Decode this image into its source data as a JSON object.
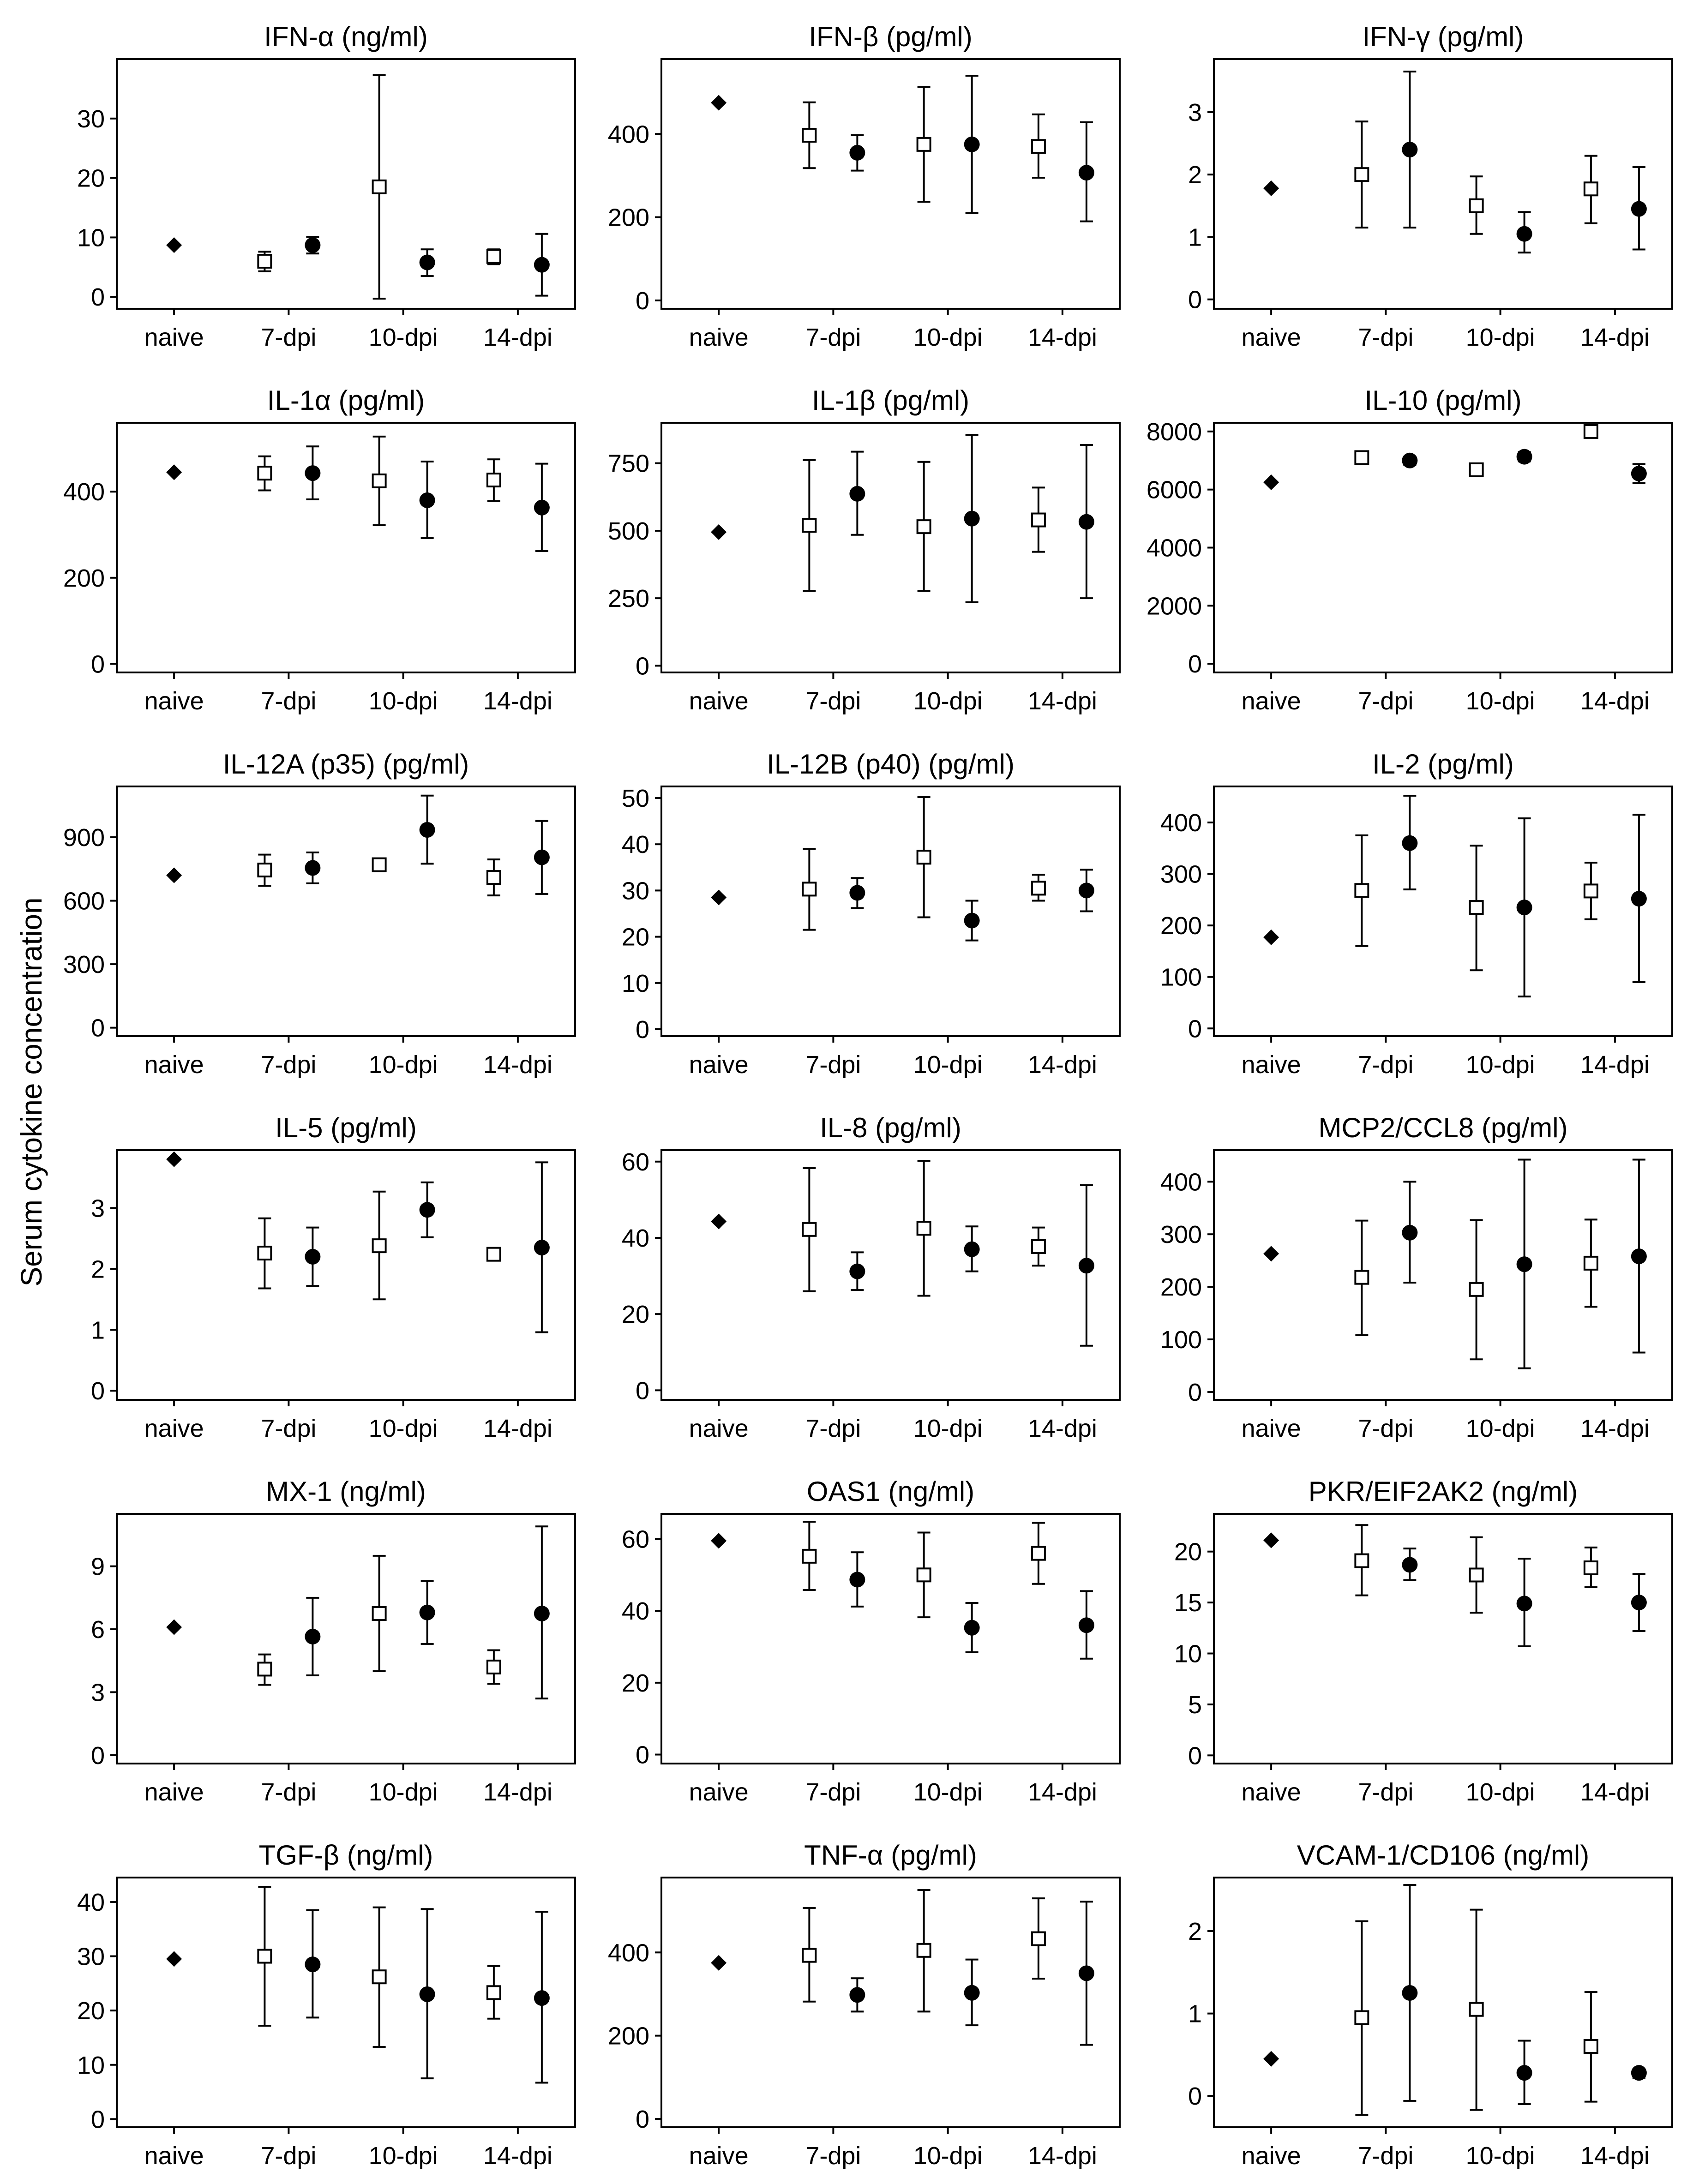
{
  "y_axis_title": "Serum cytokine concentration",
  "chart_data": [
    {
      "type": "scatter",
      "title": "IFN-α (ng/ml)",
      "categories": [
        "naive",
        "7-dpi",
        "10-dpi",
        "14-dpi"
      ],
      "ylim": [
        -2,
        40
      ],
      "yticks": [
        0,
        10,
        20,
        30
      ],
      "naive": 8.7,
      "open": [
        {
          "x": "7-dpi",
          "y": 6.0,
          "lo": 4.3,
          "hi": 7.6
        },
        {
          "x": "10-dpi",
          "y": 18.5,
          "lo": -0.3,
          "hi": 37.3
        },
        {
          "x": "14-dpi",
          "y": 6.8,
          "lo": 5.5,
          "hi": 8.0
        }
      ],
      "filled": [
        {
          "x": "7-dpi",
          "y": 8.7,
          "lo": 7.3,
          "hi": 10.1
        },
        {
          "x": "10-dpi",
          "y": 5.8,
          "lo": 3.5,
          "hi": 8.0
        },
        {
          "x": "14-dpi",
          "y": 5.4,
          "lo": 0.2,
          "hi": 10.6
        }
      ]
    },
    {
      "type": "scatter",
      "title": "IFN-β (pg/ml)",
      "categories": [
        "naive",
        "7-dpi",
        "10-dpi",
        "14-dpi"
      ],
      "ylim": [
        -20,
        580
      ],
      "yticks": [
        0,
        200,
        400
      ],
      "naive": 475,
      "open": [
        {
          "x": "7-dpi",
          "y": 397,
          "lo": 318,
          "hi": 476
        },
        {
          "x": "10-dpi",
          "y": 375,
          "lo": 237,
          "hi": 513
        },
        {
          "x": "14-dpi",
          "y": 370,
          "lo": 295,
          "hi": 447
        }
      ],
      "filled": [
        {
          "x": "7-dpi",
          "y": 355,
          "lo": 312,
          "hi": 397
        },
        {
          "x": "10-dpi",
          "y": 375,
          "lo": 210,
          "hi": 540
        },
        {
          "x": "14-dpi",
          "y": 307,
          "lo": 190,
          "hi": 428
        }
      ]
    },
    {
      "type": "scatter",
      "title": "IFN-γ (pg/ml)",
      "categories": [
        "naive",
        "7-dpi",
        "10-dpi",
        "14-dpi"
      ],
      "ylim": [
        -0.15,
        3.85
      ],
      "yticks": [
        0,
        1,
        2,
        3
      ],
      "naive": 1.78,
      "open": [
        {
          "x": "7-dpi",
          "y": 2.0,
          "lo": 1.15,
          "hi": 2.85
        },
        {
          "x": "10-dpi",
          "y": 1.5,
          "lo": 1.05,
          "hi": 1.97
        },
        {
          "x": "14-dpi",
          "y": 1.77,
          "lo": 1.22,
          "hi": 2.3
        }
      ],
      "filled": [
        {
          "x": "7-dpi",
          "y": 2.4,
          "lo": 1.15,
          "hi": 3.65
        },
        {
          "x": "10-dpi",
          "y": 1.05,
          "lo": 0.75,
          "hi": 1.4
        },
        {
          "x": "14-dpi",
          "y": 1.45,
          "lo": 0.8,
          "hi": 2.12
        }
      ]
    },
    {
      "type": "scatter",
      "title": "IL-1α (pg/ml)",
      "categories": [
        "naive",
        "7-dpi",
        "10-dpi",
        "14-dpi"
      ],
      "ylim": [
        -20,
        560
      ],
      "yticks": [
        0,
        200,
        400
      ],
      "naive": 445,
      "open": [
        {
          "x": "7-dpi",
          "y": 443,
          "lo": 403,
          "hi": 482
        },
        {
          "x": "10-dpi",
          "y": 425,
          "lo": 322,
          "hi": 528
        },
        {
          "x": "14-dpi",
          "y": 427,
          "lo": 378,
          "hi": 475
        }
      ],
      "filled": [
        {
          "x": "7-dpi",
          "y": 443,
          "lo": 382,
          "hi": 505
        },
        {
          "x": "10-dpi",
          "y": 380,
          "lo": 292,
          "hi": 470
        },
        {
          "x": "14-dpi",
          "y": 363,
          "lo": 262,
          "hi": 465
        }
      ]
    },
    {
      "type": "scatter",
      "title": "IL-1β (pg/ml)",
      "categories": [
        "naive",
        "7-dpi",
        "10-dpi",
        "14-dpi"
      ],
      "ylim": [
        -25,
        900
      ],
      "yticks": [
        0,
        250,
        500,
        750
      ],
      "naive": 495,
      "open": [
        {
          "x": "7-dpi",
          "y": 520,
          "lo": 277,
          "hi": 762
        },
        {
          "x": "10-dpi",
          "y": 515,
          "lo": 277,
          "hi": 755
        },
        {
          "x": "14-dpi",
          "y": 540,
          "lo": 422,
          "hi": 660
        }
      ],
      "filled": [
        {
          "x": "7-dpi",
          "y": 637,
          "lo": 485,
          "hi": 793
        },
        {
          "x": "10-dpi",
          "y": 545,
          "lo": 235,
          "hi": 855
        },
        {
          "x": "14-dpi",
          "y": 533,
          "lo": 250,
          "hi": 818
        }
      ]
    },
    {
      "type": "scatter",
      "title": "IL-10 (pg/ml)",
      "categories": [
        "naive",
        "7-dpi",
        "10-dpi",
        "14-dpi"
      ],
      "ylim": [
        -300,
        8300
      ],
      "yticks": [
        0,
        2000,
        4000,
        6000,
        8000
      ],
      "naive": 6250,
      "open": [
        {
          "x": "7-dpi",
          "y": 7100,
          "lo": 6950,
          "hi": 7250
        },
        {
          "x": "10-dpi",
          "y": 6680,
          "lo": 6500,
          "hi": 6850
        },
        {
          "x": "14-dpi",
          "y": 8000,
          "lo": 7900,
          "hi": 8100
        }
      ],
      "filled": [
        {
          "x": "7-dpi",
          "y": 7000,
          "lo": 6850,
          "hi": 7130
        },
        {
          "x": "10-dpi",
          "y": 7130,
          "lo": 6970,
          "hi": 7290
        },
        {
          "x": "14-dpi",
          "y": 6550,
          "lo": 6220,
          "hi": 6880
        }
      ]
    },
    {
      "type": "scatter",
      "title": "IL-12A (p35) (pg/ml)",
      "categories": [
        "naive",
        "7-dpi",
        "10-dpi",
        "14-dpi"
      ],
      "ylim": [
        -40,
        1140
      ],
      "yticks": [
        0,
        300,
        600,
        900
      ],
      "naive": 720,
      "open": [
        {
          "x": "7-dpi",
          "y": 745,
          "lo": 670,
          "hi": 818
        },
        {
          "x": "10-dpi",
          "y": 770,
          "lo": 748,
          "hi": 792
        },
        {
          "x": "14-dpi",
          "y": 710,
          "lo": 625,
          "hi": 795
        }
      ],
      "filled": [
        {
          "x": "7-dpi",
          "y": 755,
          "lo": 682,
          "hi": 828
        },
        {
          "x": "10-dpi",
          "y": 935,
          "lo": 775,
          "hi": 1097
        },
        {
          "x": "14-dpi",
          "y": 805,
          "lo": 632,
          "hi": 977
        }
      ]
    },
    {
      "type": "scatter",
      "title": "IL-12B (p40) (pg/ml)",
      "categories": [
        "naive",
        "7-dpi",
        "10-dpi",
        "14-dpi"
      ],
      "ylim": [
        -1.5,
        52.5
      ],
      "yticks": [
        0,
        10,
        20,
        30,
        40,
        50
      ],
      "naive": 28.5,
      "open": [
        {
          "x": "7-dpi",
          "y": 30.3,
          "lo": 21.5,
          "hi": 39.0
        },
        {
          "x": "10-dpi",
          "y": 37.2,
          "lo": 24.2,
          "hi": 50.2
        },
        {
          "x": "14-dpi",
          "y": 30.5,
          "lo": 27.8,
          "hi": 33.4
        }
      ],
      "filled": [
        {
          "x": "7-dpi",
          "y": 29.5,
          "lo": 26.2,
          "hi": 32.7
        },
        {
          "x": "10-dpi",
          "y": 23.5,
          "lo": 19.2,
          "hi": 27.8
        },
        {
          "x": "14-dpi",
          "y": 30.0,
          "lo": 25.5,
          "hi": 34.5
        }
      ]
    },
    {
      "type": "scatter",
      "title": "IL-2 (pg/ml)",
      "categories": [
        "naive",
        "7-dpi",
        "10-dpi",
        "14-dpi"
      ],
      "ylim": [
        -15,
        470
      ],
      "yticks": [
        0,
        100,
        200,
        300,
        400
      ],
      "naive": 177,
      "open": [
        {
          "x": "7-dpi",
          "y": 268,
          "lo": 160,
          "hi": 375
        },
        {
          "x": "10-dpi",
          "y": 235,
          "lo": 113,
          "hi": 355
        },
        {
          "x": "14-dpi",
          "y": 267,
          "lo": 212,
          "hi": 322
        }
      ],
      "filled": [
        {
          "x": "7-dpi",
          "y": 360,
          "lo": 270,
          "hi": 452
        },
        {
          "x": "10-dpi",
          "y": 235,
          "lo": 62,
          "hi": 408
        },
        {
          "x": "14-dpi",
          "y": 252,
          "lo": 90,
          "hi": 415
        }
      ]
    },
    {
      "type": "scatter",
      "title": "IL-5 (pg/ml)",
      "categories": [
        "naive",
        "7-dpi",
        "10-dpi",
        "14-dpi"
      ],
      "ylim": [
        -0.15,
        3.95
      ],
      "yticks": [
        0,
        1,
        2,
        3
      ],
      "naive": 3.8,
      "open": [
        {
          "x": "7-dpi",
          "y": 2.26,
          "lo": 1.68,
          "hi": 2.83
        },
        {
          "x": "10-dpi",
          "y": 2.38,
          "lo": 1.5,
          "hi": 3.27
        },
        {
          "x": "14-dpi",
          "y": 2.24,
          "lo": 2.17,
          "hi": 2.31
        }
      ],
      "filled": [
        {
          "x": "7-dpi",
          "y": 2.2,
          "lo": 1.72,
          "hi": 2.68
        },
        {
          "x": "10-dpi",
          "y": 2.97,
          "lo": 2.52,
          "hi": 3.42
        },
        {
          "x": "14-dpi",
          "y": 2.35,
          "lo": 0.96,
          "hi": 3.75
        }
      ]
    },
    {
      "type": "scatter",
      "title": "IL-8 (pg/ml)",
      "categories": [
        "naive",
        "7-dpi",
        "10-dpi",
        "14-dpi"
      ],
      "ylim": [
        -2.5,
        63
      ],
      "yticks": [
        0,
        20,
        40,
        60
      ],
      "naive": 44.3,
      "open": [
        {
          "x": "7-dpi",
          "y": 42.2,
          "lo": 26.0,
          "hi": 58.3
        },
        {
          "x": "10-dpi",
          "y": 42.5,
          "lo": 24.8,
          "hi": 60.2
        },
        {
          "x": "14-dpi",
          "y": 37.7,
          "lo": 32.7,
          "hi": 42.7
        }
      ],
      "filled": [
        {
          "x": "7-dpi",
          "y": 31.2,
          "lo": 26.3,
          "hi": 36.2
        },
        {
          "x": "10-dpi",
          "y": 37.0,
          "lo": 31.2,
          "hi": 43.0
        },
        {
          "x": "14-dpi",
          "y": 32.7,
          "lo": 11.7,
          "hi": 53.8
        }
      ]
    },
    {
      "type": "scatter",
      "title": "MCP2/CCL8 (pg/ml)",
      "categories": [
        "naive",
        "7-dpi",
        "10-dpi",
        "14-dpi"
      ],
      "ylim": [
        -15,
        460
      ],
      "yticks": [
        0,
        100,
        200,
        300,
        400
      ],
      "naive": 263,
      "open": [
        {
          "x": "7-dpi",
          "y": 218,
          "lo": 108,
          "hi": 326
        },
        {
          "x": "10-dpi",
          "y": 195,
          "lo": 62,
          "hi": 327
        },
        {
          "x": "14-dpi",
          "y": 245,
          "lo": 162,
          "hi": 328
        }
      ],
      "filled": [
        {
          "x": "7-dpi",
          "y": 303,
          "lo": 208,
          "hi": 400
        },
        {
          "x": "10-dpi",
          "y": 243,
          "lo": 45,
          "hi": 442
        },
        {
          "x": "14-dpi",
          "y": 258,
          "lo": 75,
          "hi": 442
        }
      ]
    },
    {
      "type": "scatter",
      "title": "MX-1 (ng/ml)",
      "categories": [
        "naive",
        "7-dpi",
        "10-dpi",
        "14-dpi"
      ],
      "ylim": [
        -0.4,
        11.5
      ],
      "yticks": [
        0,
        3,
        6,
        9
      ],
      "naive": 6.1,
      "open": [
        {
          "x": "7-dpi",
          "y": 4.1,
          "lo": 3.35,
          "hi": 4.8
        },
        {
          "x": "10-dpi",
          "y": 6.75,
          "lo": 4.0,
          "hi": 9.5
        },
        {
          "x": "14-dpi",
          "y": 4.2,
          "lo": 3.4,
          "hi": 5.0
        }
      ],
      "filled": [
        {
          "x": "7-dpi",
          "y": 5.65,
          "lo": 3.8,
          "hi": 7.5
        },
        {
          "x": "10-dpi",
          "y": 6.8,
          "lo": 5.3,
          "hi": 8.3
        },
        {
          "x": "14-dpi",
          "y": 6.75,
          "lo": 2.7,
          "hi": 10.9
        }
      ]
    },
    {
      "type": "scatter",
      "title": "OAS1 (ng/ml)",
      "categories": [
        "naive",
        "7-dpi",
        "10-dpi",
        "14-dpi"
      ],
      "ylim": [
        -2.5,
        67
      ],
      "yticks": [
        0,
        20,
        40,
        60
      ],
      "naive": 59.5,
      "open": [
        {
          "x": "7-dpi",
          "y": 55.2,
          "lo": 45.8,
          "hi": 64.8
        },
        {
          "x": "10-dpi",
          "y": 50.0,
          "lo": 38.2,
          "hi": 61.8
        },
        {
          "x": "14-dpi",
          "y": 56.0,
          "lo": 47.5,
          "hi": 64.5
        }
      ],
      "filled": [
        {
          "x": "7-dpi",
          "y": 48.7,
          "lo": 41.2,
          "hi": 56.3
        },
        {
          "x": "10-dpi",
          "y": 35.3,
          "lo": 28.5,
          "hi": 42.2
        },
        {
          "x": "14-dpi",
          "y": 36.0,
          "lo": 26.7,
          "hi": 45.5
        }
      ]
    },
    {
      "type": "scatter",
      "title": "PKR/EIF2AK2 (ng/ml)",
      "categories": [
        "naive",
        "7-dpi",
        "10-dpi",
        "14-dpi"
      ],
      "ylim": [
        -0.8,
        23.7
      ],
      "yticks": [
        0,
        5,
        10,
        15,
        20
      ],
      "naive": 21.1,
      "open": [
        {
          "x": "7-dpi",
          "y": 19.1,
          "lo": 15.7,
          "hi": 22.6
        },
        {
          "x": "10-dpi",
          "y": 17.7,
          "lo": 14.0,
          "hi": 21.4
        },
        {
          "x": "14-dpi",
          "y": 18.4,
          "lo": 16.5,
          "hi": 20.4
        }
      ],
      "filled": [
        {
          "x": "7-dpi",
          "y": 18.7,
          "lo": 17.2,
          "hi": 20.3
        },
        {
          "x": "10-dpi",
          "y": 14.9,
          "lo": 10.7,
          "hi": 19.3
        },
        {
          "x": "14-dpi",
          "y": 15.0,
          "lo": 12.2,
          "hi": 17.8
        }
      ]
    },
    {
      "type": "scatter",
      "title": "TGF-β (ng/ml)",
      "categories": [
        "naive",
        "7-dpi",
        "10-dpi",
        "14-dpi"
      ],
      "ylim": [
        -1.5,
        44.5
      ],
      "yticks": [
        0,
        10,
        20,
        30,
        40
      ],
      "naive": 29.5,
      "open": [
        {
          "x": "7-dpi",
          "y": 30.0,
          "lo": 17.2,
          "hi": 42.8
        },
        {
          "x": "10-dpi",
          "y": 26.2,
          "lo": 13.3,
          "hi": 39.0
        },
        {
          "x": "14-dpi",
          "y": 23.3,
          "lo": 18.5,
          "hi": 28.2
        }
      ],
      "filled": [
        {
          "x": "7-dpi",
          "y": 28.5,
          "lo": 18.7,
          "hi": 38.5
        },
        {
          "x": "10-dpi",
          "y": 23.0,
          "lo": 7.5,
          "hi": 38.7
        },
        {
          "x": "14-dpi",
          "y": 22.3,
          "lo": 6.7,
          "hi": 38.2
        }
      ]
    },
    {
      "type": "scatter",
      "title": "TNF-α (pg/ml)",
      "categories": [
        "naive",
        "7-dpi",
        "10-dpi",
        "14-dpi"
      ],
      "ylim": [
        -20,
        580
      ],
      "yticks": [
        0,
        200,
        400
      ],
      "naive": 375,
      "open": [
        {
          "x": "7-dpi",
          "y": 393,
          "lo": 282,
          "hi": 507
        },
        {
          "x": "10-dpi",
          "y": 405,
          "lo": 258,
          "hi": 550
        },
        {
          "x": "14-dpi",
          "y": 433,
          "lo": 337,
          "hi": 530
        }
      ],
      "filled": [
        {
          "x": "7-dpi",
          "y": 298,
          "lo": 258,
          "hi": 338
        },
        {
          "x": "10-dpi",
          "y": 303,
          "lo": 225,
          "hi": 383
        },
        {
          "x": "14-dpi",
          "y": 350,
          "lo": 178,
          "hi": 522
        }
      ]
    },
    {
      "type": "scatter",
      "title": "VCAM-1/CD106 (ng/ml)",
      "categories": [
        "naive",
        "7-dpi",
        "10-dpi",
        "14-dpi"
      ],
      "ylim": [
        -0.38,
        2.65
      ],
      "yticks": [
        0,
        1,
        2
      ],
      "naive": 0.45,
      "open": [
        {
          "x": "7-dpi",
          "y": 0.95,
          "lo": -0.23,
          "hi": 2.12
        },
        {
          "x": "10-dpi",
          "y": 1.05,
          "lo": -0.17,
          "hi": 2.26
        },
        {
          "x": "14-dpi",
          "y": 0.6,
          "lo": -0.07,
          "hi": 1.26
        }
      ],
      "filled": [
        {
          "x": "7-dpi",
          "y": 1.25,
          "lo": -0.06,
          "hi": 2.56
        },
        {
          "x": "10-dpi",
          "y": 0.28,
          "lo": -0.1,
          "hi": 0.67
        },
        {
          "x": "14-dpi",
          "y": 0.28,
          "lo": 0.22,
          "hi": 0.33
        }
      ]
    }
  ]
}
